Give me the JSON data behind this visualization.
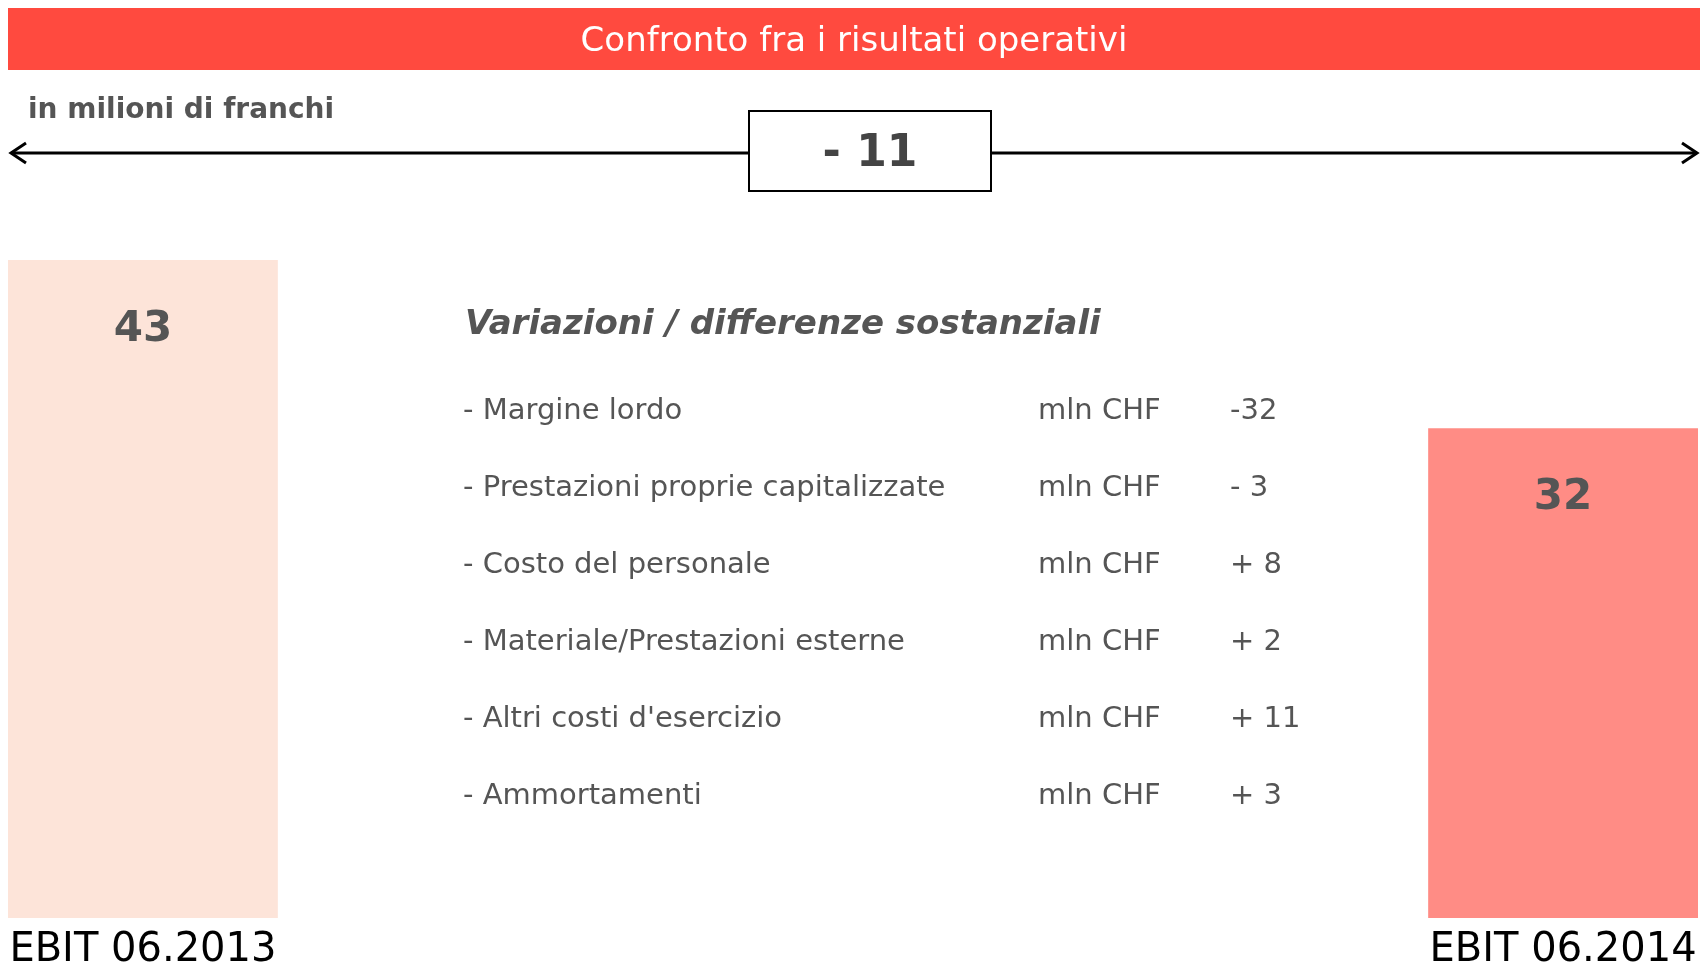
{
  "chart_data": {
    "type": "bar",
    "title": "Confronto fra i risultati operativi",
    "subtitle": "in milioni di franchi",
    "categories": [
      "EBIT 06.2013",
      "EBIT 06.2014"
    ],
    "values": [
      43,
      32
    ],
    "colors": [
      "#fde4d9",
      "#ff8c85"
    ],
    "data_labels": true,
    "grid": false,
    "legend": false,
    "annotations": [
      "- 11",
      "Variazioni / differenze sostanziali",
      "- Margine lordo",
      "mln CHF",
      "-32",
      "- Prestazioni proprie capitalizzate",
      "mln CHF",
      "- 3",
      "- Costo del personale",
      "mln CHF",
      "+ 8",
      "- Materiale/Prestazioni esterne",
      "mln CHF",
      "+ 2",
      "- Altri costi d'esercizio",
      "mln CHF",
      "+ 11",
      "- Ammortamenti",
      "mln CHF",
      "+ 3"
    ]
  }
}
